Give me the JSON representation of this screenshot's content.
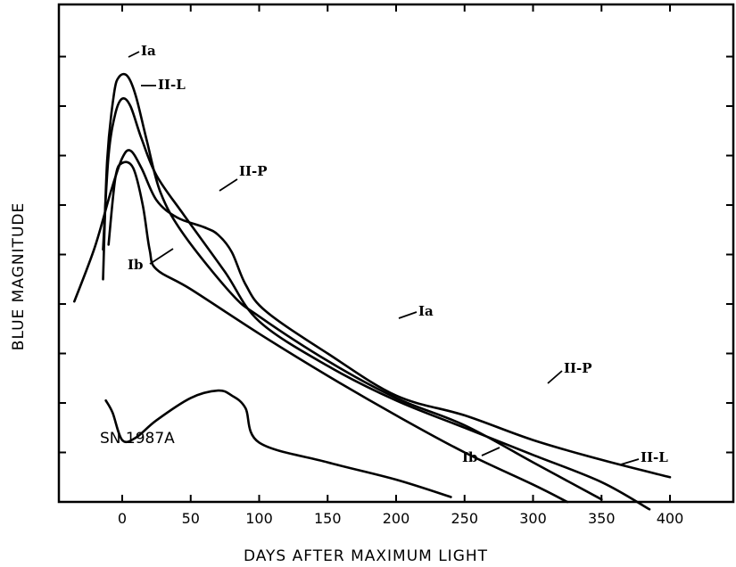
{
  "chart_data": {
    "type": "line",
    "title": "",
    "xlabel": "DAYS AFTER MAXIMUM LIGHT",
    "ylabel": "BLUE MAGNITUDE",
    "xlim": [
      -50,
      420
    ],
    "ylim": [
      0,
      9.5
    ],
    "x_ticks": [
      0,
      50,
      100,
      150,
      200,
      250,
      300,
      350,
      400
    ],
    "y_tick_values": [
      1,
      2,
      3,
      4,
      5,
      6,
      7,
      8,
      9
    ],
    "y_tick_labels_shown": false,
    "grid": false,
    "annotation": "SN 1987A",
    "series": [
      {
        "name": "Ia",
        "points": [
          [
            -14,
            4.5
          ],
          [
            -11,
            6.9
          ],
          [
            -6,
            8.25
          ],
          [
            -2,
            8.6
          ],
          [
            4,
            8.6
          ],
          [
            10,
            8.2
          ],
          [
            18,
            7.3
          ],
          [
            28,
            6.25
          ],
          [
            45,
            5.4
          ],
          [
            80,
            4.2
          ],
          [
            100,
            3.75
          ],
          [
            150,
            2.85
          ],
          [
            200,
            2.1
          ],
          [
            250,
            1.55
          ],
          [
            300,
            0.8
          ],
          [
            350,
            0.05
          ]
        ]
      },
      {
        "name": "II-L",
        "points": [
          [
            -14,
            5.1
          ],
          [
            -10,
            7.0
          ],
          [
            -5,
            7.85
          ],
          [
            0,
            8.15
          ],
          [
            6,
            8.0
          ],
          [
            14,
            7.35
          ],
          [
            25,
            6.6
          ],
          [
            45,
            5.8
          ],
          [
            75,
            4.65
          ],
          [
            100,
            3.65
          ],
          [
            150,
            2.75
          ],
          [
            200,
            2.05
          ],
          [
            250,
            1.5
          ],
          [
            300,
            0.95
          ],
          [
            350,
            0.4
          ],
          [
            385,
            -0.15
          ]
        ]
      },
      {
        "name": "II-P",
        "points": [
          [
            -35,
            4.05
          ],
          [
            -20,
            5.15
          ],
          [
            -8,
            6.3
          ],
          [
            0,
            6.95
          ],
          [
            6,
            7.1
          ],
          [
            14,
            6.75
          ],
          [
            25,
            6.1
          ],
          [
            40,
            5.75
          ],
          [
            60,
            5.55
          ],
          [
            70,
            5.4
          ],
          [
            80,
            5.05
          ],
          [
            90,
            4.4
          ],
          [
            105,
            3.85
          ],
          [
            150,
            3.0
          ],
          [
            200,
            2.15
          ],
          [
            250,
            1.75
          ],
          [
            300,
            1.25
          ],
          [
            350,
            0.85
          ],
          [
            400,
            0.5
          ]
        ]
      },
      {
        "name": "Ib",
        "points": [
          [
            -10,
            5.2
          ],
          [
            -5,
            6.55
          ],
          [
            0,
            6.85
          ],
          [
            8,
            6.75
          ],
          [
            15,
            6.0
          ],
          [
            20,
            5.1
          ],
          [
            25,
            4.7
          ],
          [
            50,
            4.3
          ],
          [
            100,
            3.4
          ],
          [
            150,
            2.55
          ],
          [
            200,
            1.75
          ],
          [
            250,
            1.0
          ],
          [
            300,
            0.35
          ],
          [
            325,
            0.0
          ]
        ]
      },
      {
        "name": "SN 1987A",
        "points": [
          [
            -12,
            2.05
          ],
          [
            -7,
            1.8
          ],
          [
            0,
            1.25
          ],
          [
            10,
            1.3
          ],
          [
            25,
            1.65
          ],
          [
            50,
            2.1
          ],
          [
            70,
            2.25
          ],
          [
            80,
            2.15
          ],
          [
            90,
            1.9
          ],
          [
            100,
            1.2
          ],
          [
            150,
            0.8
          ],
          [
            200,
            0.45
          ],
          [
            240,
            0.1
          ]
        ]
      }
    ]
  }
}
